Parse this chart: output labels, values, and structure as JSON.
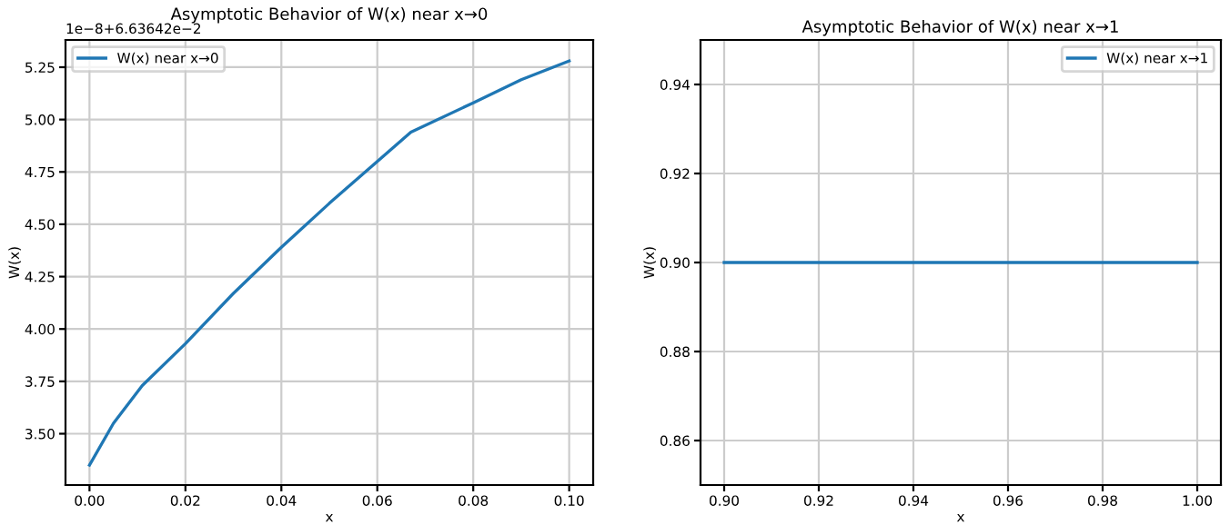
{
  "chart_data": [
    {
      "type": "line",
      "title": "Asymptotic Behavior of W(x) near x→0",
      "xlabel": "x",
      "ylabel": "W(x)",
      "x": [
        0.0,
        0.005,
        0.011,
        0.02,
        0.03,
        0.04,
        0.05,
        0.06,
        0.067,
        0.08,
        0.09,
        0.1
      ],
      "series": [
        {
          "name": "W(x) near x→0",
          "color": "#1f77b4",
          "values": [
            3.35,
            3.55,
            3.73,
            3.93,
            4.17,
            4.39,
            4.6,
            4.8,
            4.94,
            5.08,
            5.19,
            5.28
          ]
        }
      ],
      "xlim": [
        -0.005,
        0.105
      ],
      "xticks": [
        {
          "value": 0,
          "label": "0.00"
        },
        0.02,
        0.04,
        0.06,
        0.08,
        {
          "value": 0.1,
          "label": "0.10"
        }
      ],
      "ylim": [
        3.255,
        5.38
      ],
      "yticks": [
        {
          "value": 3.5,
          "label": "3.50"
        },
        3.75,
        {
          "value": 4,
          "label": "4.00"
        },
        4.25,
        {
          "value": 4.5,
          "label": "4.50"
        },
        4.75,
        {
          "value": 5,
          "label": "5.00"
        },
        5.25
      ],
      "annotations": [
        "1e−8+6.63642e−2"
      ],
      "grid": true,
      "legend": "top left"
    },
    {
      "type": "line",
      "title": "Asymptotic Behavior of W(x) near x→1",
      "xlabel": "x",
      "ylabel": "W(x)",
      "x": [
        0.9,
        1.0
      ],
      "series": [
        {
          "name": "W(x) near x→1",
          "color": "#1f77b4",
          "values": [
            0.9,
            0.9
          ]
        }
      ],
      "xlim": [
        0.895,
        1.005
      ],
      "xticks": [
        {
          "value": 0.9,
          "label": "0.90"
        },
        0.92,
        0.94,
        0.96,
        0.98,
        {
          "value": 1.0,
          "label": "1.00"
        }
      ],
      "ylim": [
        0.85,
        0.95
      ],
      "yticks": [
        0.86,
        0.88,
        {
          "value": 0.9,
          "label": "0.90"
        },
        0.92,
        0.94
      ],
      "grid": true,
      "legend": "top right"
    }
  ]
}
